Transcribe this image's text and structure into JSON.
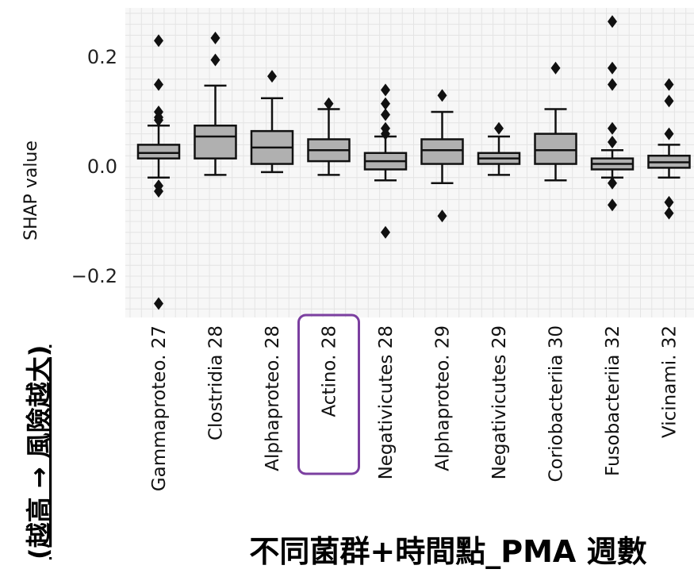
{
  "chart_data": {
    "type": "box",
    "ylabel": "SHAP value",
    "y_note": "(越高 → 風險越大)",
    "xlabel": "不同菌群+時間點_PMA 週數",
    "ylim": [
      -0.27,
      0.28
    ],
    "yticks": [
      {
        "value": 0.2,
        "label": "0.2"
      },
      {
        "value": 0.0,
        "label": "0.0"
      },
      {
        "value": -0.2,
        "label": "−0.2"
      }
    ],
    "grid": true,
    "highlight_category": "Actino. 28",
    "highlight_color": "#7b3fa0",
    "box_color": "#b0b0b0",
    "categories": [
      "Gammaproteo. 27",
      "Clostridia 28",
      "Alphaproteo. 28",
      "Actino. 28",
      "Negativicutes 28",
      "Alphaproteo. 29",
      "Negativicutes 29",
      "Coriobacteriia 30",
      "Fusobacteriia 32",
      "Vicinami. 32"
    ],
    "boxes": [
      {
        "q1": 0.015,
        "median": 0.025,
        "q3": 0.04,
        "whisker_low": -0.02,
        "whisker_high": 0.075,
        "outliers": [
          0.23,
          0.15,
          0.1,
          0.09,
          0.085,
          -0.035,
          -0.045,
          -0.25
        ]
      },
      {
        "q1": 0.015,
        "median": 0.055,
        "q3": 0.075,
        "whisker_low": -0.015,
        "whisker_high": 0.148,
        "outliers": [
          0.235,
          0.195
        ]
      },
      {
        "q1": 0.005,
        "median": 0.035,
        "q3": 0.065,
        "whisker_low": -0.01,
        "whisker_high": 0.125,
        "outliers": [
          0.165
        ]
      },
      {
        "q1": 0.01,
        "median": 0.03,
        "q3": 0.05,
        "whisker_low": -0.015,
        "whisker_high": 0.105,
        "outliers": [
          0.115
        ]
      },
      {
        "q1": -0.005,
        "median": 0.01,
        "q3": 0.025,
        "whisker_low": -0.025,
        "whisker_high": 0.055,
        "outliers": [
          0.14,
          0.115,
          0.095,
          0.07,
          0.06,
          -0.12
        ]
      },
      {
        "q1": 0.005,
        "median": 0.03,
        "q3": 0.05,
        "whisker_low": -0.03,
        "whisker_high": 0.1,
        "outliers": [
          0.13,
          -0.09
        ]
      },
      {
        "q1": 0.005,
        "median": 0.015,
        "q3": 0.025,
        "whisker_low": -0.015,
        "whisker_high": 0.055,
        "outliers": [
          0.07
        ]
      },
      {
        "q1": 0.005,
        "median": 0.03,
        "q3": 0.06,
        "whisker_low": -0.025,
        "whisker_high": 0.105,
        "outliers": [
          0.18
        ]
      },
      {
        "q1": -0.005,
        "median": 0.005,
        "q3": 0.015,
        "whisker_low": -0.02,
        "whisker_high": 0.03,
        "outliers": [
          0.265,
          0.18,
          0.15,
          0.07,
          0.045,
          -0.03,
          -0.07
        ]
      },
      {
        "q1": -0.002,
        "median": 0.008,
        "q3": 0.02,
        "whisker_low": -0.02,
        "whisker_high": 0.04,
        "outliers": [
          0.15,
          0.12,
          0.06,
          -0.065,
          -0.085
        ]
      }
    ]
  }
}
